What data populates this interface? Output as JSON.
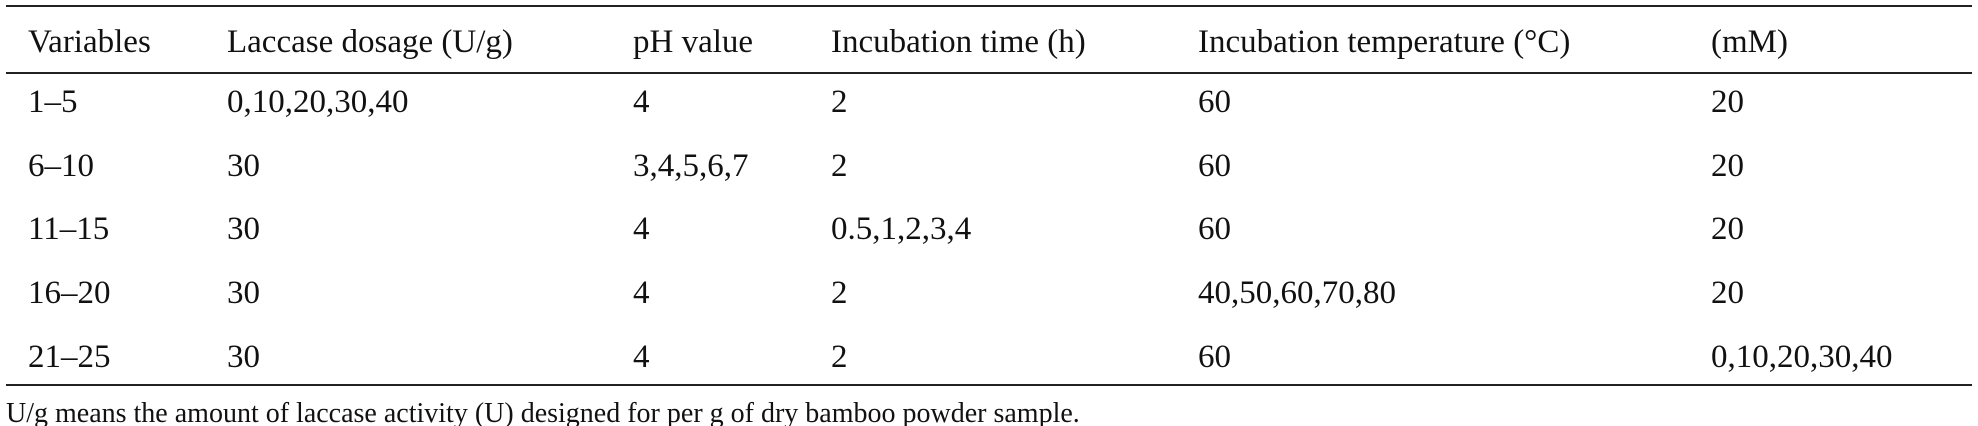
{
  "table": {
    "header": [
      "Variables",
      "Laccase dosage (U/g)",
      "pH value",
      "Incubation time (h)",
      "Incubation temperature (°C)",
      "(mM)"
    ],
    "rows": [
      [
        "1–5",
        "0,10,20,30,40",
        "4",
        "2",
        "60",
        "20"
      ],
      [
        "6–10",
        "30",
        "3,4,5,6,7",
        "2",
        "60",
        "20"
      ],
      [
        "11–15",
        "30",
        "4",
        "0.5,1,2,3,4",
        "60",
        "20"
      ],
      [
        "16–20",
        "30",
        "4",
        "2",
        "40,50,60,70,80",
        "20"
      ],
      [
        "21–25",
        "30",
        "4",
        "2",
        "60",
        "0,10,20,30,40"
      ]
    ],
    "footnote": "U/g means the amount of laccase activity (U) designed for per g of dry bamboo powder sample."
  }
}
